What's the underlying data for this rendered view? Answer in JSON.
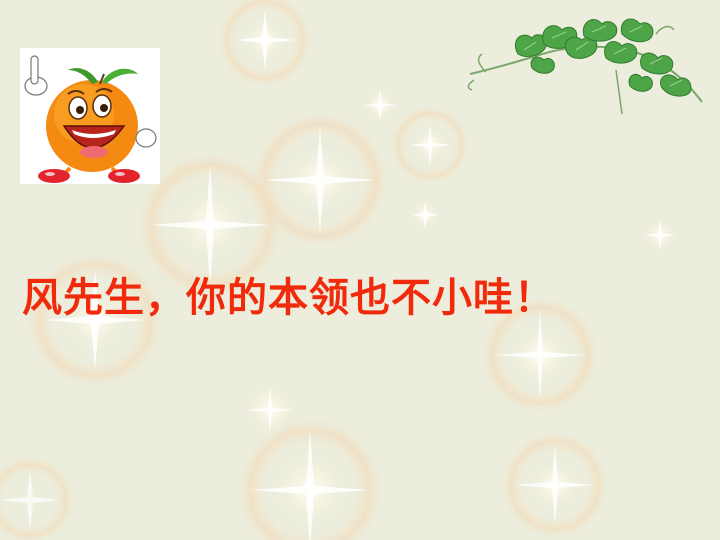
{
  "slide": {
    "headline": "风先生，你的本领也不小哇！",
    "headline_color": "#f22a0c",
    "background_color": "#eceddc"
  },
  "decor": {
    "mascot": "smiling-orange-cartoon",
    "vine": "green-ivy-vine",
    "background": "soft-sparkle-pattern"
  }
}
